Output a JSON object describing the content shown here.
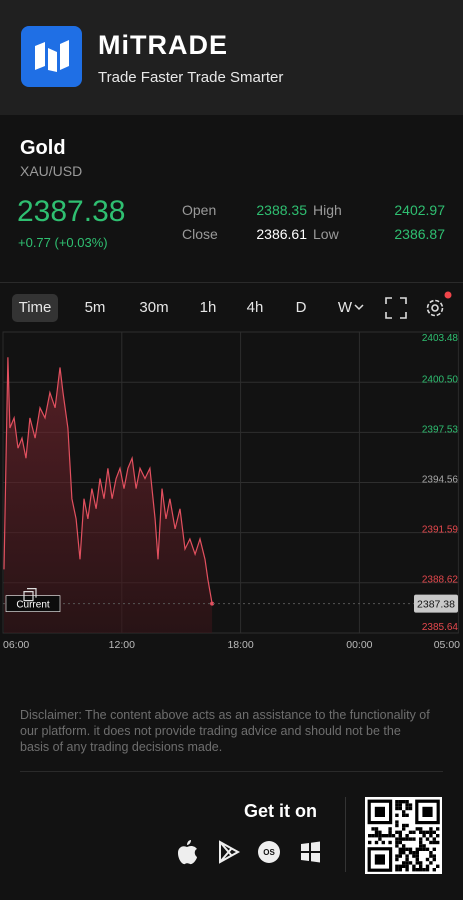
{
  "header": {
    "brand": "MiTRADE",
    "tagline": "Trade Faster Trade Smarter"
  },
  "instrument": {
    "name": "Gold",
    "symbol": "XAU/USD"
  },
  "quote": {
    "price": "2387.38",
    "change": "+0.77 (+0.03%)",
    "stats": [
      {
        "label": "Open",
        "value": "2388.35"
      },
      {
        "label": "Close",
        "value": "2386.61"
      },
      {
        "label": "High",
        "value": "2402.97"
      },
      {
        "label": "Low",
        "value": "2386.87"
      }
    ]
  },
  "timeframes": [
    "Time",
    "5m",
    "30m",
    "1h",
    "4h",
    "D",
    "W"
  ],
  "chart_data": {
    "type": "line",
    "color": "#e2505f",
    "grid": true,
    "x": [
      0.05,
      0.25,
      0.35,
      0.56,
      0.76,
      0.96,
      1.16,
      1.36,
      1.62,
      1.87,
      2.12,
      2.37,
      2.63,
      2.88,
      3.03,
      3.28,
      3.48,
      3.69,
      3.89,
      4.09,
      4.29,
      4.49,
      4.7,
      4.9,
      5.1,
      5.3,
      5.51,
      5.71,
      5.91,
      6.11,
      6.31,
      6.52,
      6.72,
      6.92,
      7.17,
      7.42,
      7.68,
      7.83,
      8.03,
      8.23,
      8.43,
      8.69,
      8.94,
      9.19,
      9.44,
      9.7,
      9.95,
      10.2,
      10.35,
      10.56
    ],
    "values": [
      2389.41,
      2401.98,
      2397.79,
      2398.39,
      2396.59,
      2397.19,
      2396.0,
      2398.39,
      2397.19,
      2398.99,
      2398.39,
      2399.89,
      2398.99,
      2401.38,
      2399.89,
      2397.79,
      2393.6,
      2392.4,
      2390.01,
      2393.6,
      2392.4,
      2394.2,
      2393.0,
      2394.8,
      2393.6,
      2395.4,
      2393.6,
      2394.8,
      2395.4,
      2394.2,
      2395.4,
      2396.0,
      2394.2,
      2395.4,
      2394.8,
      2395.4,
      2392.4,
      2390.01,
      2394.2,
      2392.4,
      2393.6,
      2391.81,
      2393.0,
      2390.61,
      2391.21,
      2390.31,
      2391.21,
      2390.01,
      2388.81,
      2387.38
    ],
    "xlim": [
      0,
      23
    ],
    "xticks": [
      {
        "value": 0,
        "label": "06:00"
      },
      {
        "value": 6,
        "label": "12:00"
      },
      {
        "value": 12,
        "label": "18:00"
      },
      {
        "value": 18,
        "label": "00:00"
      },
      {
        "value": 23,
        "label": "05:00"
      }
    ],
    "ylim": [
      2385.64,
      2403.48
    ],
    "yticks": [
      2403.48,
      {
        "value": 2400.5,
        "label": "2400.50"
      },
      2397.53,
      2394.56,
      2391.59,
      2388.62,
      2385.64
    ],
    "ytick_colors": [
      "#2fbf71",
      "#2fbf71",
      "#2fbf71",
      "#a8a8a8",
      "#e5484d",
      "#e5484d",
      "#e5484d"
    ],
    "current": {
      "label": "Current",
      "value": 2387.38
    }
  },
  "disclaimer": "Disclaimer: The content above acts as an assistance to the functionality of our platform. it does not provide trading advice and should not be the basis of any trading decisions made.",
  "footer": {
    "cta": "Get it on",
    "os_badge": "OS"
  }
}
